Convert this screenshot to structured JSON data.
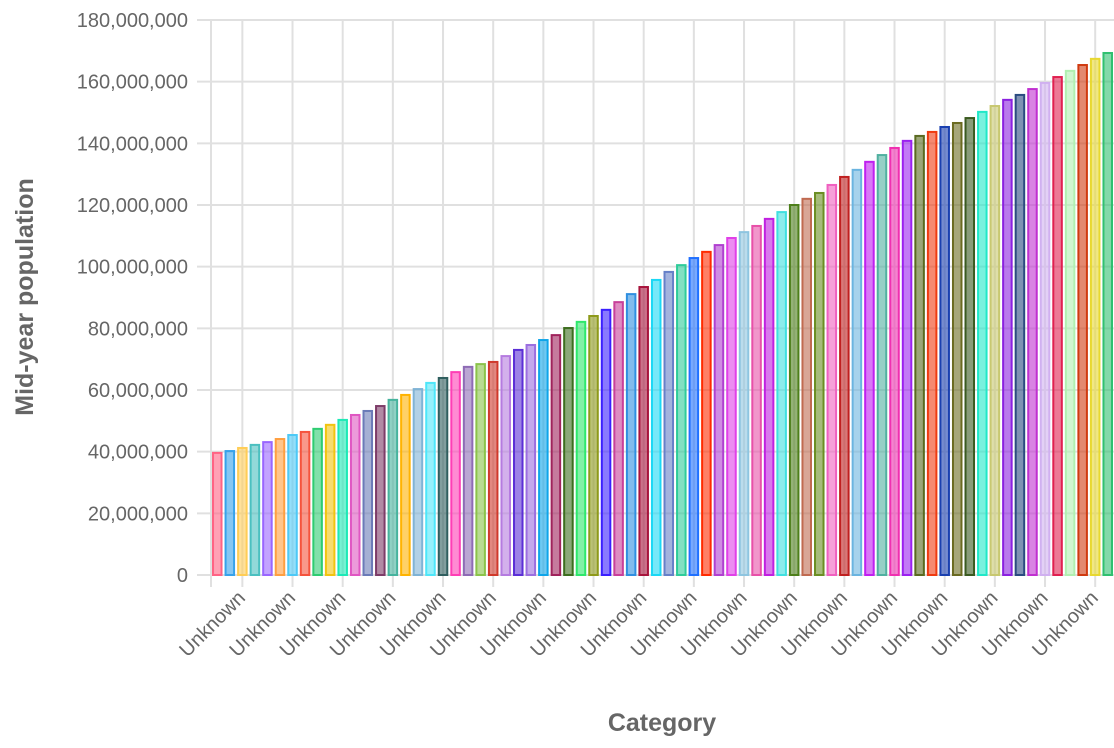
{
  "chart_data": {
    "type": "bar",
    "xlabel": "Category",
    "ylabel": "Mid-year population",
    "ylim": [
      0,
      180000000
    ],
    "yticks": [
      "0",
      "20,000,000",
      "40,000,000",
      "60,000,000",
      "80,000,000",
      "100,000,000",
      "120,000,000",
      "140,000,000",
      "160,000,000",
      "180,000,000"
    ],
    "grid": true,
    "legend": "none",
    "categories": [
      "Unknown",
      "Unknown",
      "Unknown",
      "Unknown",
      "Unknown",
      "Unknown",
      "Unknown",
      "Unknown",
      "Unknown",
      "Unknown",
      "Unknown",
      "Unknown",
      "Unknown",
      "Unknown",
      "Unknown",
      "Unknown",
      "Unknown",
      "Unknown",
      "Unknown",
      "Unknown",
      "Unknown",
      "Unknown",
      "Unknown",
      "Unknown",
      "Unknown",
      "Unknown",
      "Unknown",
      "Unknown",
      "Unknown",
      "Unknown",
      "Unknown",
      "Unknown",
      "Unknown",
      "Unknown",
      "Unknown",
      "Unknown",
      "Unknown",
      "Unknown",
      "Unknown",
      "Unknown",
      "Unknown",
      "Unknown",
      "Unknown",
      "Unknown",
      "Unknown",
      "Unknown",
      "Unknown",
      "Unknown",
      "Unknown",
      "Unknown",
      "Unknown",
      "Unknown",
      "Unknown",
      "Unknown",
      "Unknown",
      "Unknown",
      "Unknown",
      "Unknown",
      "Unknown",
      "Unknown",
      "Unknown",
      "Unknown",
      "Unknown",
      "Unknown",
      "Unknown",
      "Unknown",
      "Unknown",
      "Unknown",
      "Unknown",
      "Unknown",
      "Unknown",
      "Unknown"
    ],
    "values": [
      39600000,
      40200000,
      41200000,
      42200000,
      43100000,
      44100000,
      45400000,
      46400000,
      47400000,
      48700000,
      50300000,
      51900000,
      53200000,
      54800000,
      56800000,
      58400000,
      60300000,
      62300000,
      63900000,
      65800000,
      67500000,
      68400000,
      69100000,
      71000000,
      73000000,
      74600000,
      76200000,
      77800000,
      80100000,
      82100000,
      84000000,
      86000000,
      88500000,
      91100000,
      93400000,
      95700000,
      98300000,
      100500000,
      102800000,
      104800000,
      107000000,
      109300000,
      111200000,
      113200000,
      115500000,
      117700000,
      120000000,
      122000000,
      123900000,
      126500000,
      129100000,
      131400000,
      134000000,
      136200000,
      138500000,
      140800000,
      142400000,
      143700000,
      145300000,
      146600000,
      148200000,
      150200000,
      152100000,
      154100000,
      155700000,
      157600000,
      159600000,
      161500000,
      163500000,
      165400000,
      167400000,
      169300000
    ],
    "colors": [
      "#ff6384",
      "#36a2eb",
      "#ffcd56",
      "#4bc0c0",
      "#9966ff",
      "#ff9f40",
      "#4dc9f6",
      "#f5533d",
      "#2ecc71",
      "#f1c40f",
      "#1de9b6",
      "#e056c2",
      "#6b7bb8",
      "#7d3c68",
      "#45b39d",
      "#ffb300",
      "#7fb3d5",
      "#4ee6f9",
      "#2f5e5e",
      "#ff3eb5",
      "#8e6bb5",
      "#8bc34a",
      "#d0392b",
      "#b57be0",
      "#5b2fd6",
      "#9b6ee0",
      "#0ea5e9",
      "#a0225b",
      "#3d6e1f",
      "#2ee86c",
      "#8e9a1a",
      "#3a1fff",
      "#c8409a",
      "#2f8fe0",
      "#a8143c",
      "#1ad8f5",
      "#6680c8",
      "#2ecc9a",
      "#2070ff",
      "#ff2a00",
      "#b040d0",
      "#e040e8",
      "#8ec5e0",
      "#e850a8",
      "#c020e0",
      "#40e0e0",
      "#4d7f1a",
      "#c06a50",
      "#6b8e23",
      "#f060c0",
      "#c02020",
      "#6ab4e0",
      "#c020f0",
      "#50b0a0",
      "#f030b0",
      "#9a20f0",
      "#5a6a20",
      "#f03a10",
      "#1a40b0",
      "#6a6a20",
      "#3a5a20",
      "#20e8c8",
      "#c8c870",
      "#8a20e0",
      "#2a4a80",
      "#c030d0",
      "#d0b0f0",
      "#e02050",
      "#b0f0b0",
      "#d03a10",
      "#e8d830",
      "#30c070"
    ],
    "gridColor": "#e0e0e0",
    "textColor": "#666666"
  }
}
